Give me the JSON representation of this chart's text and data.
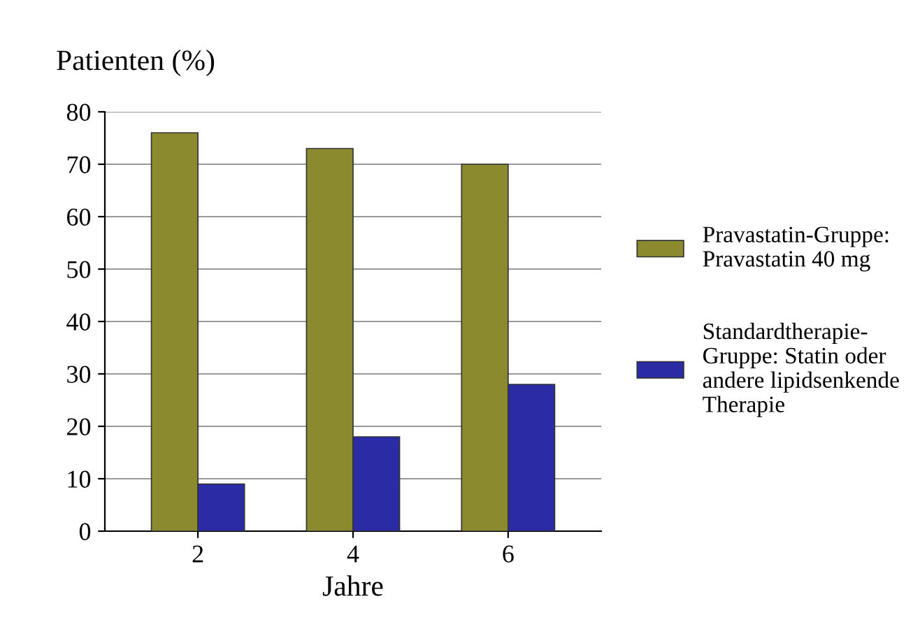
{
  "chart_data": {
    "type": "bar",
    "ylabel": "Patienten (%)",
    "xlabel": "Jahre",
    "categories": [
      "2",
      "4",
      "6"
    ],
    "series": [
      {
        "name": "Pravastatin-Gruppe:\nPravastatin 40 mg",
        "color": "#8c8a2e",
        "values": [
          76,
          73,
          70
        ]
      },
      {
        "name": "Standardtherapie-\nGruppe: Statin oder\nandere lipidsenkende\nTherapie",
        "color": "#2b2ba6",
        "values": [
          9,
          18,
          28
        ]
      }
    ],
    "ylim": [
      0,
      80
    ],
    "yticks": [
      0,
      10,
      20,
      30,
      40,
      50,
      60,
      70,
      80
    ],
    "grid": "y",
    "legend": "right"
  }
}
